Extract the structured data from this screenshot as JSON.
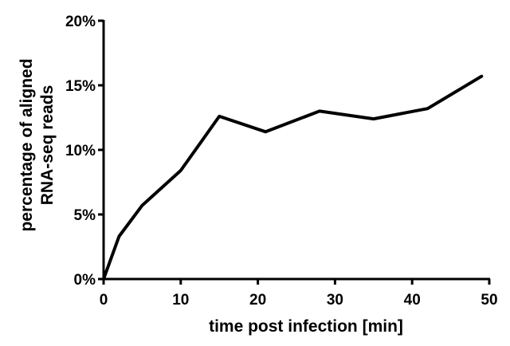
{
  "chart_data": {
    "type": "line",
    "title": "",
    "xlabel": "time post infection [min]",
    "ylabel_lines": [
      "percentage of aligned",
      "RNA-seq reads"
    ],
    "x": [
      0,
      2,
      5,
      10,
      15,
      21,
      28,
      35,
      42,
      49
    ],
    "series": [
      {
        "values": [
          0,
          3.3,
          5.7,
          8.4,
          12.6,
          11.4,
          13.0,
          12.4,
          13.2,
          15.7
        ],
        "color": "#000000"
      }
    ],
    "xlim": [
      0,
      50
    ],
    "ylim": [
      0,
      20
    ],
    "x_ticks": [
      0,
      10,
      20,
      30,
      40,
      50
    ],
    "x_tick_labels": [
      "0",
      "10",
      "20",
      "30",
      "40",
      "50"
    ],
    "y_ticks": [
      0,
      5,
      10,
      15,
      20
    ],
    "y_tick_labels": [
      "0%",
      "5%",
      "10%",
      "15%",
      "20%"
    ],
    "grid": false,
    "legend": "none"
  }
}
